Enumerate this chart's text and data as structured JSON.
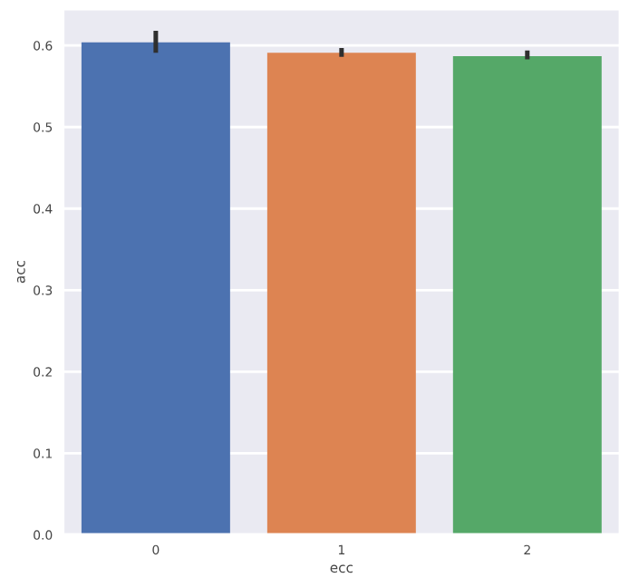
{
  "chart_data": {
    "type": "bar",
    "xlabel": "ecc",
    "ylabel": "acc",
    "categories": [
      "0",
      "1",
      "2"
    ],
    "values": [
      0.604,
      0.591,
      0.587
    ],
    "colors": [
      "#4c72b0",
      "#dd8452",
      "#55a868"
    ],
    "errors": [
      [
        0.591,
        0.618
      ],
      [
        0.586,
        0.597
      ],
      [
        0.583,
        0.594
      ]
    ],
    "ylim": [
      0,
      0.645
    ],
    "yticks": [
      {
        "value": 0,
        "label": "0.0"
      },
      0.1,
      0.2,
      0.3,
      0.4,
      0.5,
      0.6
    ],
    "grid": "y"
  }
}
